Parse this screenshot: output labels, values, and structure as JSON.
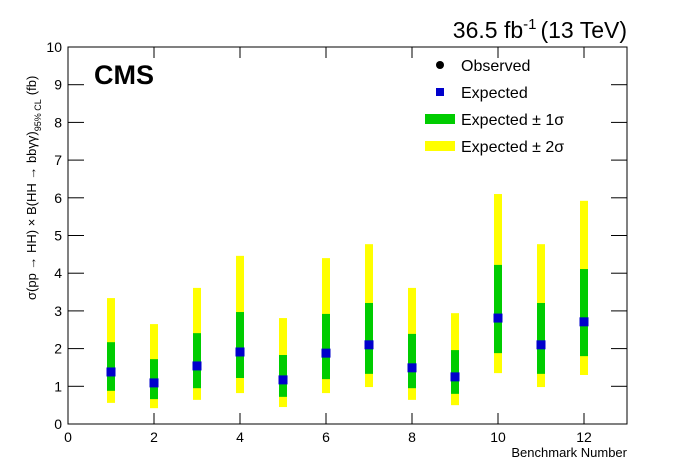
{
  "chart_data": {
    "type": "errorbar",
    "title": {
      "main": "36.5 fb",
      "sup": "-1",
      "rest": "(13 TeV)"
    },
    "logo": "CMS",
    "x_label": "Benchmark Number",
    "y_label": {
      "main": "σ(pp → HH) × B(HH → bbγγ)",
      "sub": "95% CL",
      "unit": "(fb)"
    },
    "x": [
      1,
      2,
      3,
      4,
      5,
      6,
      7,
      8,
      9,
      10,
      11,
      12
    ],
    "xlim": [
      0,
      13
    ],
    "xticks": [
      0,
      2,
      4,
      6,
      8,
      10,
      12
    ],
    "ylim": [
      0,
      10
    ],
    "yticks": [
      0,
      1,
      2,
      3,
      4,
      5,
      6,
      7,
      8,
      9,
      10
    ],
    "series": [
      {
        "name": "Observed",
        "color": "#000000",
        "values": [
          null,
          null,
          null,
          null,
          null,
          null,
          null,
          null,
          null,
          null,
          null,
          null
        ]
      },
      {
        "name": "Expected",
        "color": "#0000cc",
        "values": [
          1.38,
          1.09,
          1.54,
          1.91,
          1.17,
          1.88,
          2.1,
          1.49,
          1.25,
          2.81,
          2.1,
          2.71
        ]
      }
    ],
    "bands": [
      {
        "name": "Expected ± 2σ",
        "color": "#ffff00",
        "low": [
          0.56,
          0.42,
          0.64,
          0.82,
          0.45,
          0.82,
          0.98,
          0.64,
          0.5,
          1.35,
          0.98,
          1.3
        ],
        "high": [
          3.34,
          2.65,
          3.61,
          4.46,
          2.81,
          4.4,
          4.77,
          3.61,
          2.94,
          6.1,
          4.77,
          5.92
        ]
      },
      {
        "name": "Expected ± 1σ",
        "color": "#00cc00",
        "low": [
          0.88,
          0.66,
          0.95,
          1.22,
          0.72,
          1.19,
          1.33,
          0.95,
          0.8,
          1.88,
          1.33,
          1.8
        ],
        "high": [
          2.17,
          1.72,
          2.41,
          2.97,
          1.83,
          2.92,
          3.21,
          2.39,
          1.96,
          4.22,
          3.21,
          4.11
        ]
      }
    ]
  }
}
